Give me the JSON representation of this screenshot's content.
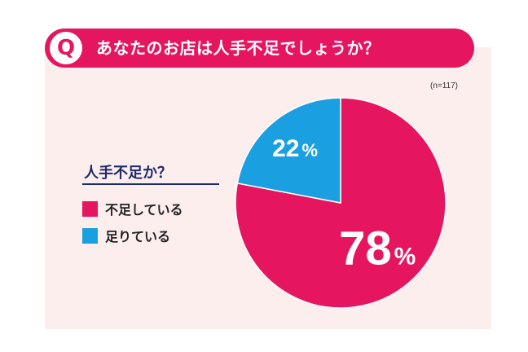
{
  "question": {
    "badge": "Q",
    "text": "あなたのお店は人手不足でしょうか？"
  },
  "colors": {
    "accent": "#e5155f",
    "blue": "#1aa0e0",
    "panel": "#fdeeee",
    "navy": "#1f2a6b"
  },
  "chart_data": {
    "type": "pie",
    "sample_size": "(n=117)",
    "legend_title": "人手不足か？",
    "legend_placement": "left",
    "slices": [
      {
        "label": "不足している",
        "value": 78,
        "display": "78",
        "unit": "%",
        "color": "#e5155f"
      },
      {
        "label": "足りている",
        "value": 22,
        "display": "22",
        "unit": "%",
        "color": "#1aa0e0"
      }
    ]
  }
}
